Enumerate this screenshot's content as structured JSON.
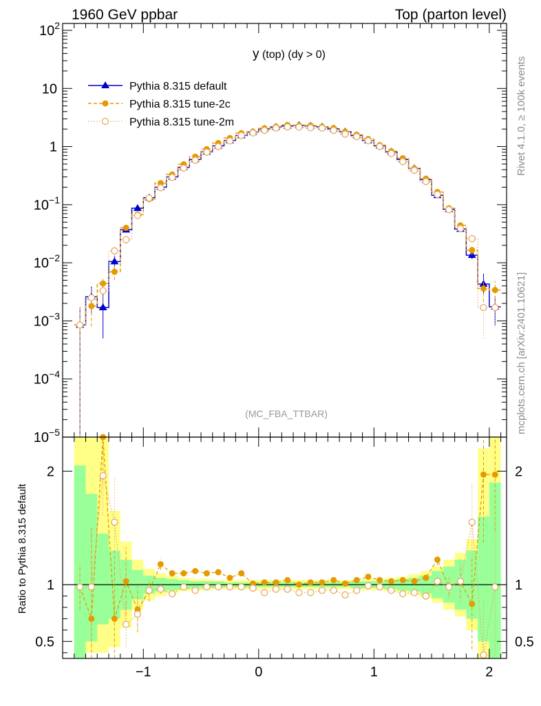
{
  "header": {
    "left": "1960 GeV ppbar",
    "right": "Top (parton level)"
  },
  "plot_title": {
    "main": "y",
    "sub": " (top) (dy > 0)"
  },
  "watermark": "(MC_FBA_TTBAR)",
  "side_text": {
    "rivet": "Rivet 4.1.0, ≥ 100k events",
    "mcplots": "mcplots.cern.ch [arXiv:2401.10621]"
  },
  "ratio_ylabel": "Ratio to Pythia 8.315 default",
  "colors": {
    "default": "#0000cc",
    "tune2c": "#e69a00",
    "tune2m": "#e8a860",
    "band_green": "#99ff99",
    "band_yellow": "#ffff88"
  },
  "chart_data": [
    {
      "type": "line",
      "scale": "log",
      "title": "y (top) (dy > 0)",
      "xlim": [
        -1.7,
        2.15
      ],
      "ylim": [
        1e-05,
        100
      ],
      "yticks": [
        {
          "v": 1e-05,
          "base": "10",
          "exp": "−5"
        },
        {
          "v": 0.0001,
          "base": "10",
          "exp": "−4"
        },
        {
          "v": 0.001,
          "base": "10",
          "exp": "−3"
        },
        {
          "v": 0.01,
          "base": "10",
          "exp": "−2"
        },
        {
          "v": 0.1,
          "base": "10",
          "exp": "−1"
        },
        {
          "v": 1,
          "base": "1",
          "exp": ""
        },
        {
          "v": 10,
          "base": "10",
          "exp": ""
        },
        {
          "v": 100,
          "base": "10",
          "exp": "2"
        }
      ],
      "x": [
        -1.55,
        -1.45,
        -1.35,
        -1.25,
        -1.15,
        -1.05,
        -0.95,
        -0.85,
        -0.75,
        -0.65,
        -0.55,
        -0.45,
        -0.35,
        -0.25,
        -0.15,
        -0.05,
        0.05,
        0.15,
        0.25,
        0.35,
        0.45,
        0.55,
        0.65,
        0.75,
        0.85,
        0.95,
        1.05,
        1.15,
        1.25,
        1.35,
        1.45,
        1.55,
        1.65,
        1.75,
        1.85,
        1.95,
        2.05
      ],
      "series": [
        {
          "name": "Pythia 8.315 default",
          "marker": "triangle",
          "values": [
            0.00085,
            0.0026,
            0.0017,
            0.0105,
            0.037,
            0.087,
            0.132,
            0.2,
            0.3,
            0.44,
            0.6,
            0.81,
            1.03,
            1.27,
            1.55,
            1.78,
            2.02,
            2.17,
            2.27,
            2.32,
            2.27,
            2.19,
            2.02,
            1.8,
            1.55,
            1.27,
            1.03,
            0.81,
            0.6,
            0.42,
            0.27,
            0.145,
            0.083,
            0.038,
            0.0135,
            0.0043,
            0.00175
          ],
          "err_lo": [
            0.00085,
            0.0013,
            0.0012,
            0.0025,
            0.004,
            0.005,
            0.005,
            0.0,
            0.0,
            0.0,
            0.0,
            0.0,
            0.0,
            0.0,
            0.0,
            0.0,
            0.0,
            0.0,
            0.0,
            0.0,
            0.0,
            0.0,
            0.0,
            0.0,
            0.0,
            0.0,
            0.0,
            0.0,
            0.0,
            0.0,
            0.0,
            0.006,
            0.005,
            0.004,
            0.002,
            0.0014,
            0.0009
          ],
          "err_hi": [
            0.0009,
            0.0013,
            0.0012,
            0.0025,
            0.004,
            0.005,
            0.005,
            0.0,
            0.0,
            0.0,
            0.0,
            0.0,
            0.0,
            0.0,
            0.0,
            0.0,
            0.0,
            0.0,
            0.0,
            0.0,
            0.0,
            0.0,
            0.0,
            0.0,
            0.0,
            0.0,
            0.0,
            0.0,
            0.0,
            0.0,
            0.0,
            0.006,
            0.005,
            0.004,
            0.002,
            0.0022,
            0.0009
          ]
        },
        {
          "name": "Pythia 8.315 tune-2c",
          "marker": "circle",
          "values": [
            0.00085,
            0.0018,
            0.0044,
            0.007,
            0.04,
            0.068,
            0.125,
            0.235,
            0.33,
            0.495,
            0.67,
            0.9,
            1.15,
            1.4,
            1.7,
            1.8,
            2.06,
            2.2,
            2.35,
            2.3,
            2.3,
            2.2,
            2.08,
            1.8,
            1.6,
            1.35,
            1.06,
            0.83,
            0.63,
            0.42,
            0.28,
            0.165,
            0.087,
            0.044,
            0.0165,
            0.0036,
            0.0034
          ],
          "err_lo": [
            0.00085,
            0.001,
            0.0014,
            0.002,
            0.004,
            0.005,
            0.005,
            0.0,
            0.0,
            0.0,
            0.0,
            0.0,
            0.0,
            0.0,
            0.0,
            0.0,
            0.0,
            0.0,
            0.0,
            0.0,
            0.0,
            0.0,
            0.0,
            0.0,
            0.0,
            0.0,
            0.0,
            0.0,
            0.0,
            0.0,
            0.0,
            0.006,
            0.005,
            0.004,
            0.003,
            0.0015,
            0.0015
          ],
          "err_hi": [
            0.0009,
            0.001,
            0.0014,
            0.002,
            0.004,
            0.005,
            0.005,
            0.0,
            0.0,
            0.0,
            0.0,
            0.0,
            0.0,
            0.0,
            0.0,
            0.0,
            0.0,
            0.0,
            0.0,
            0.0,
            0.0,
            0.0,
            0.0,
            0.0,
            0.0,
            0.0,
            0.0,
            0.0,
            0.0,
            0.0,
            0.0,
            0.006,
            0.005,
            0.004,
            0.003,
            0.0015,
            0.0015
          ]
        },
        {
          "name": "Pythia 8.315 tune-2m",
          "marker": "open-circle",
          "values": [
            0.00085,
            0.0025,
            0.0033,
            0.016,
            0.025,
            0.065,
            0.13,
            0.195,
            0.295,
            0.425,
            0.58,
            0.8,
            1.0,
            1.25,
            1.55,
            1.72,
            1.9,
            2.08,
            2.18,
            2.16,
            2.11,
            2.08,
            1.9,
            1.64,
            1.48,
            1.26,
            1.0,
            0.76,
            0.55,
            0.39,
            0.25,
            0.15,
            0.082,
            0.039,
            0.026,
            0.0017,
            0.0017
          ],
          "err_lo": [
            0.00085,
            0.0012,
            0.0012,
            0.003,
            0.004,
            0.005,
            0.005,
            0.0,
            0.0,
            0.0,
            0.0,
            0.0,
            0.0,
            0.0,
            0.0,
            0.0,
            0.0,
            0.0,
            0.0,
            0.0,
            0.0,
            0.0,
            0.0,
            0.0,
            0.0,
            0.0,
            0.0,
            0.0,
            0.0,
            0.0,
            0.0,
            0.006,
            0.005,
            0.004,
            0.003,
            0.0012,
            0.0009
          ],
          "err_hi": [
            0.0009,
            0.0012,
            0.0012,
            0.003,
            0.004,
            0.005,
            0.005,
            0.0,
            0.0,
            0.0,
            0.0,
            0.0,
            0.0,
            0.0,
            0.0,
            0.0,
            0.0,
            0.0,
            0.0,
            0.0,
            0.0,
            0.0,
            0.0,
            0.0,
            0.0,
            0.0,
            0.0,
            0.0,
            0.0,
            0.0,
            0.0,
            0.006,
            0.005,
            0.004,
            0.003,
            0.0012,
            0.0009
          ]
        }
      ]
    },
    {
      "type": "line",
      "ylabel": "Ratio to Pythia 8.315 default",
      "xlim": [
        -1.7,
        2.15
      ],
      "ylim": [
        0.35,
        2.3
      ],
      "xticks": [
        {
          "v": -1,
          "label": "−1"
        },
        {
          "v": 0,
          "label": "0"
        },
        {
          "v": 1,
          "label": "1"
        },
        {
          "v": 2,
          "label": "2"
        }
      ],
      "yticks": [
        {
          "v": 0.5,
          "label": "0.5"
        },
        {
          "v": 1,
          "label": "1"
        },
        {
          "v": 2,
          "label": "2"
        }
      ],
      "x": [
        -1.55,
        -1.45,
        -1.35,
        -1.25,
        -1.15,
        -1.05,
        -0.95,
        -0.85,
        -0.75,
        -0.65,
        -0.55,
        -0.45,
        -0.35,
        -0.25,
        -0.15,
        -0.05,
        0.05,
        0.15,
        0.25,
        0.35,
        0.45,
        0.55,
        0.65,
        0.75,
        0.85,
        0.95,
        1.05,
        1.15,
        1.25,
        1.35,
        1.45,
        1.55,
        1.65,
        1.75,
        1.85,
        1.95,
        2.05
      ],
      "band_yellow": [
        0.4,
        0.4,
        0.4,
        0.45,
        0.62,
        0.78,
        0.86,
        0.9,
        0.92,
        0.94,
        0.95,
        0.95,
        0.96,
        0.96,
        0.96,
        0.96,
        0.96,
        0.96,
        0.96,
        0.96,
        0.96,
        0.96,
        0.96,
        0.96,
        0.96,
        0.95,
        0.95,
        0.94,
        0.93,
        0.91,
        0.88,
        0.84,
        0.78,
        0.72,
        0.6,
        0.35,
        0.4
      ],
      "band_yellow_hi": [
        2.3,
        2.3,
        2.3,
        1.65,
        1.38,
        1.22,
        1.14,
        1.1,
        1.08,
        1.06,
        1.05,
        1.05,
        1.04,
        1.04,
        1.04,
        1.04,
        1.04,
        1.04,
        1.04,
        1.04,
        1.04,
        1.04,
        1.04,
        1.04,
        1.04,
        1.05,
        1.05,
        1.06,
        1.07,
        1.09,
        1.12,
        1.16,
        1.22,
        1.28,
        1.4,
        2.2,
        2.3
      ],
      "band_green": [
        0.35,
        0.5,
        0.65,
        0.7,
        0.78,
        0.87,
        0.92,
        0.94,
        0.95,
        0.96,
        0.97,
        0.97,
        0.97,
        0.98,
        0.98,
        0.98,
        0.98,
        0.98,
        0.98,
        0.98,
        0.98,
        0.98,
        0.98,
        0.98,
        0.97,
        0.97,
        0.97,
        0.96,
        0.95,
        0.94,
        0.92,
        0.88,
        0.84,
        0.78,
        0.7,
        0.5,
        0.35
      ],
      "band_green_hi": [
        2.05,
        1.8,
        1.45,
        1.3,
        1.22,
        1.13,
        1.08,
        1.06,
        1.05,
        1.04,
        1.03,
        1.03,
        1.03,
        1.02,
        1.02,
        1.02,
        1.02,
        1.02,
        1.02,
        1.02,
        1.02,
        1.02,
        1.02,
        1.02,
        1.03,
        1.03,
        1.03,
        1.04,
        1.05,
        1.06,
        1.08,
        1.12,
        1.16,
        1.22,
        1.3,
        1.6,
        1.9
      ],
      "series": [
        {
          "name": "Pythia 8.315 tune-2c",
          "values": [
            0.98,
            0.7,
            2.3,
            0.7,
            1.03,
            0.78,
            0.95,
            1.18,
            1.1,
            1.1,
            1.12,
            1.1,
            1.11,
            1.06,
            1.1,
            1.01,
            1.02,
            1.02,
            1.04,
            1.0,
            1.02,
            1.02,
            1.04,
            1.01,
            1.04,
            1.07,
            1.04,
            1.03,
            1.04,
            1.03,
            1.06,
            1.22,
            0.98,
            1.03,
            0.83,
            1.97,
            1.97
          ],
          "err": [
            0.2,
            0.8,
            0.3,
            0.6,
            0.3,
            0.2,
            0.1,
            0.05,
            0.03,
            0.02,
            0.02,
            0.02,
            0.02,
            0.02,
            0.02,
            0.02,
            0.02,
            0.02,
            0.02,
            0.02,
            0.02,
            0.02,
            0.02,
            0.02,
            0.02,
            0.02,
            0.02,
            0.02,
            0.02,
            0.03,
            0.03,
            0.05,
            0.08,
            0.15,
            0.4,
            0.6,
            0.5
          ]
        },
        {
          "name": "Pythia 8.315 tune-2m",
          "values": [
            0.98,
            0.98,
            1.96,
            1.55,
            0.65,
            0.74,
            0.95,
            0.96,
            0.92,
            0.98,
            0.95,
            0.98,
            0.98,
            0.98,
            0.98,
            0.97,
            0.93,
            0.96,
            0.96,
            0.93,
            0.93,
            0.95,
            0.95,
            0.91,
            0.95,
            0.99,
            0.98,
            0.95,
            0.92,
            0.93,
            0.9,
            1.03,
            0.98,
            1.03,
            1.55,
            0.38,
            0.98
          ],
          "err": [
            0.2,
            0.5,
            0.35,
            0.4,
            0.2,
            0.15,
            0.08,
            0.04,
            0.03,
            0.02,
            0.02,
            0.02,
            0.02,
            0.02,
            0.02,
            0.02,
            0.02,
            0.02,
            0.02,
            0.02,
            0.02,
            0.02,
            0.02,
            0.02,
            0.02,
            0.02,
            0.02,
            0.02,
            0.02,
            0.03,
            0.03,
            0.05,
            0.1,
            0.2,
            0.35,
            0.5,
            0.6
          ]
        }
      ]
    }
  ]
}
